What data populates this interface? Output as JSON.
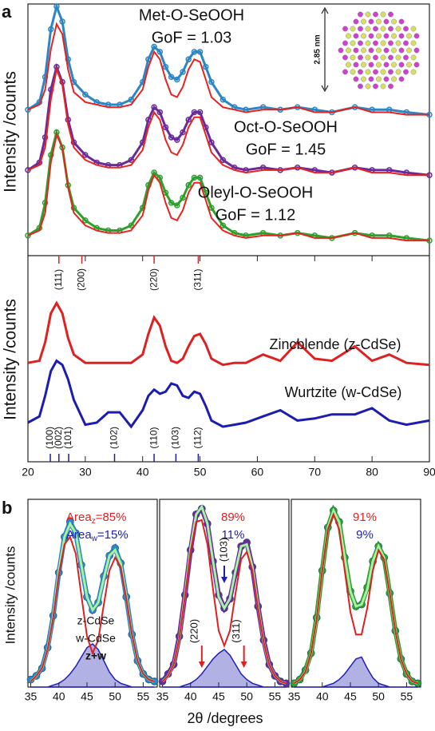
{
  "chart_data": [
    {
      "type": "line",
      "panel_label": "a",
      "ylabel": "Intensity /counts",
      "x": [
        20,
        22,
        23,
        24,
        25,
        26,
        27,
        28,
        30,
        32,
        34,
        36,
        38,
        40,
        41,
        42,
        43,
        44,
        45,
        46,
        47,
        48,
        49,
        50,
        51,
        52,
        54,
        56,
        58,
        61,
        64,
        67,
        70,
        73,
        77,
        80,
        83,
        86,
        90
      ],
      "xlim": [
        20,
        90
      ],
      "ylim": [
        0,
        100
      ],
      "fit_color": "#e8231f",
      "inset_label": "2.85 nm",
      "series": [
        {
          "name": "Met-O-SeOOH",
          "note": "GoF = 1.03",
          "color": "#2a86c4",
          "values": [
            58,
            61,
            71,
            90,
            99,
            93,
            78,
            69,
            64,
            61,
            60,
            60,
            62,
            69,
            78,
            83,
            81,
            75,
            71,
            70,
            73,
            78,
            81,
            81,
            75,
            69,
            62,
            59,
            58,
            59,
            58,
            59,
            58,
            57,
            59,
            58,
            58,
            57,
            56
          ],
          "fit": [
            58,
            60,
            66,
            82,
            92,
            88,
            74,
            65,
            61,
            60,
            59,
            59,
            60,
            66,
            75,
            81,
            78,
            70,
            64,
            63,
            67,
            74,
            78,
            77,
            70,
            63,
            59,
            58,
            57,
            58,
            58,
            59,
            57,
            57,
            59,
            57,
            57,
            56,
            56
          ]
        },
        {
          "name": "Oct-O-SeOOH",
          "note": "GoF = 1.45",
          "color": "#6b2a9c",
          "values": [
            34,
            37,
            47,
            66,
            75,
            69,
            54,
            45,
            40,
            37,
            36,
            36,
            38,
            45,
            54,
            59,
            57,
            51,
            47,
            46,
            49,
            54,
            57,
            57,
            51,
            45,
            38,
            35,
            34,
            35,
            34,
            35,
            34,
            33,
            35,
            34,
            34,
            33,
            32
          ],
          "fit": [
            34,
            36,
            43,
            62,
            74,
            68,
            52,
            43,
            38,
            36,
            35,
            35,
            36,
            42,
            51,
            57,
            54,
            46,
            41,
            40,
            44,
            51,
            55,
            55,
            48,
            41,
            36,
            34,
            33,
            34,
            34,
            35,
            33,
            33,
            35,
            33,
            33,
            32,
            32
          ]
        },
        {
          "name": "Oleyl-O-SeOOH",
          "note": "GoF = 1.12",
          "color": "#2ca02c",
          "values": [
            8,
            11,
            21,
            40,
            49,
            43,
            28,
            19,
            14,
            11,
            10,
            10,
            12,
            19,
            28,
            33,
            31,
            25,
            21,
            20,
            23,
            28,
            31,
            31,
            25,
            19,
            12,
            9,
            8,
            9,
            8,
            9,
            8,
            7,
            9,
            8,
            8,
            7,
            6
          ],
          "fit": [
            8,
            10,
            17,
            37,
            48,
            43,
            27,
            17,
            12,
            10,
            9,
            9,
            10,
            16,
            26,
            32,
            29,
            21,
            15,
            14,
            18,
            25,
            29,
            29,
            22,
            15,
            10,
            8,
            7,
            8,
            8,
            9,
            7,
            7,
            9,
            7,
            7,
            6,
            6
          ]
        }
      ]
    },
    {
      "type": "line",
      "ylabel": "Intensity /counts",
      "x": [
        20,
        22,
        23,
        24,
        25,
        26,
        27,
        28,
        30,
        32,
        34,
        36,
        38,
        40,
        41,
        42,
        43,
        44,
        45,
        46,
        47,
        48,
        49,
        50,
        51,
        52,
        54,
        56,
        58,
        61,
        64,
        67,
        70,
        73,
        77,
        80,
        83,
        86,
        90
      ],
      "xlim": [
        20,
        90
      ],
      "ylim": [
        0,
        100
      ],
      "xticks": [
        20,
        30,
        40,
        50,
        60,
        70,
        80,
        90
      ],
      "series": [
        {
          "name": "Zincblende (z-CdSe)",
          "color": "#e02020",
          "values": [
            48,
            49,
            58,
            72,
            77,
            72,
            60,
            52,
            48,
            48,
            48,
            48,
            48,
            52,
            62,
            70,
            66,
            56,
            49,
            48,
            50,
            56,
            61,
            62,
            57,
            50,
            47,
            48,
            48,
            52,
            49,
            58,
            50,
            49,
            56,
            49,
            52,
            48,
            47
          ],
          "peaks": [
            {
              "label": "(111)",
              "x": 25.4
            },
            {
              "label": "(200)",
              "x": 29.4
            },
            {
              "label": "(220)",
              "x": 42.0
            },
            {
              "label": "(311)",
              "x": 49.7
            }
          ]
        },
        {
          "name": "Wurtzite (w-CdSe)",
          "color": "#1c1cb0",
          "values": [
            19,
            22,
            32,
            44,
            49,
            47,
            40,
            30,
            18,
            19,
            24,
            24,
            17,
            25,
            32,
            35,
            33,
            34,
            38,
            37,
            32,
            31,
            34,
            33,
            27,
            20,
            17,
            18,
            19,
            22,
            25,
            20,
            21,
            23,
            23,
            26,
            20,
            18,
            20
          ],
          "peaks": [
            {
              "label": "(100)",
              "x": 23.9
            },
            {
              "label": "(002)",
              "x": 25.4
            },
            {
              "label": "(101)",
              "x": 27.1
            },
            {
              "label": "(102)",
              "x": 35.1
            },
            {
              "label": "(110)",
              "x": 42.0
            },
            {
              "label": "(103)",
              "x": 45.8
            },
            {
              "label": "(112)",
              "x": 49.7
            }
          ]
        }
      ]
    },
    {
      "type": "deconvolution",
      "panel_label": "b",
      "ylabel": "Intensity /counts",
      "xlabel": "2θ /degrees",
      "x": [
        35,
        36,
        37,
        38,
        39,
        40,
        41,
        42,
        43,
        44,
        45,
        46,
        47,
        48,
        49,
        50,
        51,
        52,
        53,
        54,
        55,
        56,
        57
      ],
      "xlim": [
        34.5,
        57.5
      ],
      "ylim": [
        0,
        100
      ],
      "xticks": [
        35,
        40,
        45,
        50,
        55
      ],
      "panels": [
        {
          "color": "#2a86c4",
          "values": [
            4,
            6,
            10,
            21,
            38,
            61,
            80,
            88,
            82,
            65,
            48,
            41,
            45,
            59,
            70,
            74,
            66,
            48,
            28,
            14,
            7,
            4,
            3
          ],
          "area_z": {
            "prefix": "Area",
            "sub": "z",
            "text": "=85%"
          },
          "area_w": {
            "prefix": "Area",
            "sub": "w",
            "text": "=15%"
          },
          "series": [
            {
              "name": "z-CdSe",
              "color": "#e02020",
              "values": [
                3,
                6,
                10,
                20,
                37,
                60,
                76,
                80,
                71,
                49,
                27,
                18,
                25,
                44,
                62,
                69,
                64,
                47,
                28,
                14,
                7,
                4,
                3
              ]
            },
            {
              "name": "w-CdSe",
              "color": "#2020b0",
              "values": [
                0,
                0,
                0,
                0,
                1,
                2,
                4,
                7,
                11,
                16,
                21,
                23,
                20,
                14,
                8,
                4,
                2,
                1,
                0,
                0,
                0,
                0,
                0
              ]
            },
            {
              "name": "z+w",
              "color": "#a6f2a0",
              "values": [
                3,
                6,
                10,
                20,
                38,
                62,
                80,
                87,
                82,
                65,
                48,
                41,
                45,
                58,
                70,
                73,
                66,
                48,
                28,
                14,
                7,
                4,
                3
              ]
            }
          ]
        },
        {
          "color": "#6b2a9c",
          "values": [
            3,
            7,
            12,
            27,
            49,
            73,
            92,
            95,
            87,
            67,
            49,
            42,
            47,
            61,
            75,
            77,
            64,
            43,
            25,
            12,
            6,
            3,
            2
          ],
          "area_z": {
            "text": "89%"
          },
          "area_w": {
            "text": "11%"
          },
          "peaks": [
            {
              "label": "(220)",
              "x": 42,
              "color": "#e02020"
            },
            {
              "label": "(311)",
              "x": 49.5,
              "color": "#e02020"
            },
            {
              "label": "(103)",
              "x": 46,
              "color": "#2020b0"
            }
          ],
          "series": [
            {
              "color": "#e02020",
              "values": [
                3,
                6,
                12,
                26,
                48,
                72,
                88,
                89,
                76,
                52,
                30,
                22,
                30,
                50,
                68,
                72,
                62,
                42,
                24,
                12,
                6,
                3,
                2
              ]
            },
            {
              "color": "#2020b0",
              "values": [
                0,
                0,
                0,
                0,
                1,
                2,
                4,
                7,
                11,
                15,
                18,
                20,
                17,
                12,
                7,
                4,
                2,
                1,
                0,
                0,
                0,
                0,
                0
              ]
            },
            {
              "color": "#a6f2a0",
              "values": [
                3,
                6,
                12,
                26,
                49,
                74,
                92,
                96,
                87,
                67,
                48,
                42,
                47,
                62,
                75,
                76,
                64,
                43,
                24,
                12,
                6,
                3,
                2
              ]
            }
          ]
        },
        {
          "color": "#2ca02c",
          "values": [
            2,
            4,
            9,
            18,
            37,
            62,
            85,
            94,
            88,
            69,
            51,
            43,
            44,
            53,
            67,
            75,
            69,
            50,
            30,
            15,
            7,
            3,
            2
          ],
          "area_z": {
            "text": "91%"
          },
          "area_w": {
            "text": "9%"
          },
          "series": [
            {
              "color": "#e02020",
              "values": [
                2,
                4,
                8,
                18,
                36,
                62,
                84,
                92,
                84,
                62,
                40,
                28,
                28,
                42,
                62,
                73,
                68,
                50,
                30,
                15,
                7,
                3,
                2
              ]
            },
            {
              "color": "#2020b0",
              "values": [
                0,
                0,
                0,
                0,
                0,
                0,
                1,
                2,
                4,
                7,
                11,
                15,
                16,
                10,
                5,
                2,
                1,
                0,
                0,
                0,
                0,
                0,
                0
              ]
            },
            {
              "color": "#a6f2a0",
              "values": [
                2,
                4,
                8,
                18,
                36,
                62,
                85,
                94,
                88,
                69,
                51,
                43,
                44,
                52,
                67,
                75,
                69,
                50,
                30,
                15,
                7,
                3,
                2
              ]
            }
          ]
        }
      ]
    }
  ]
}
